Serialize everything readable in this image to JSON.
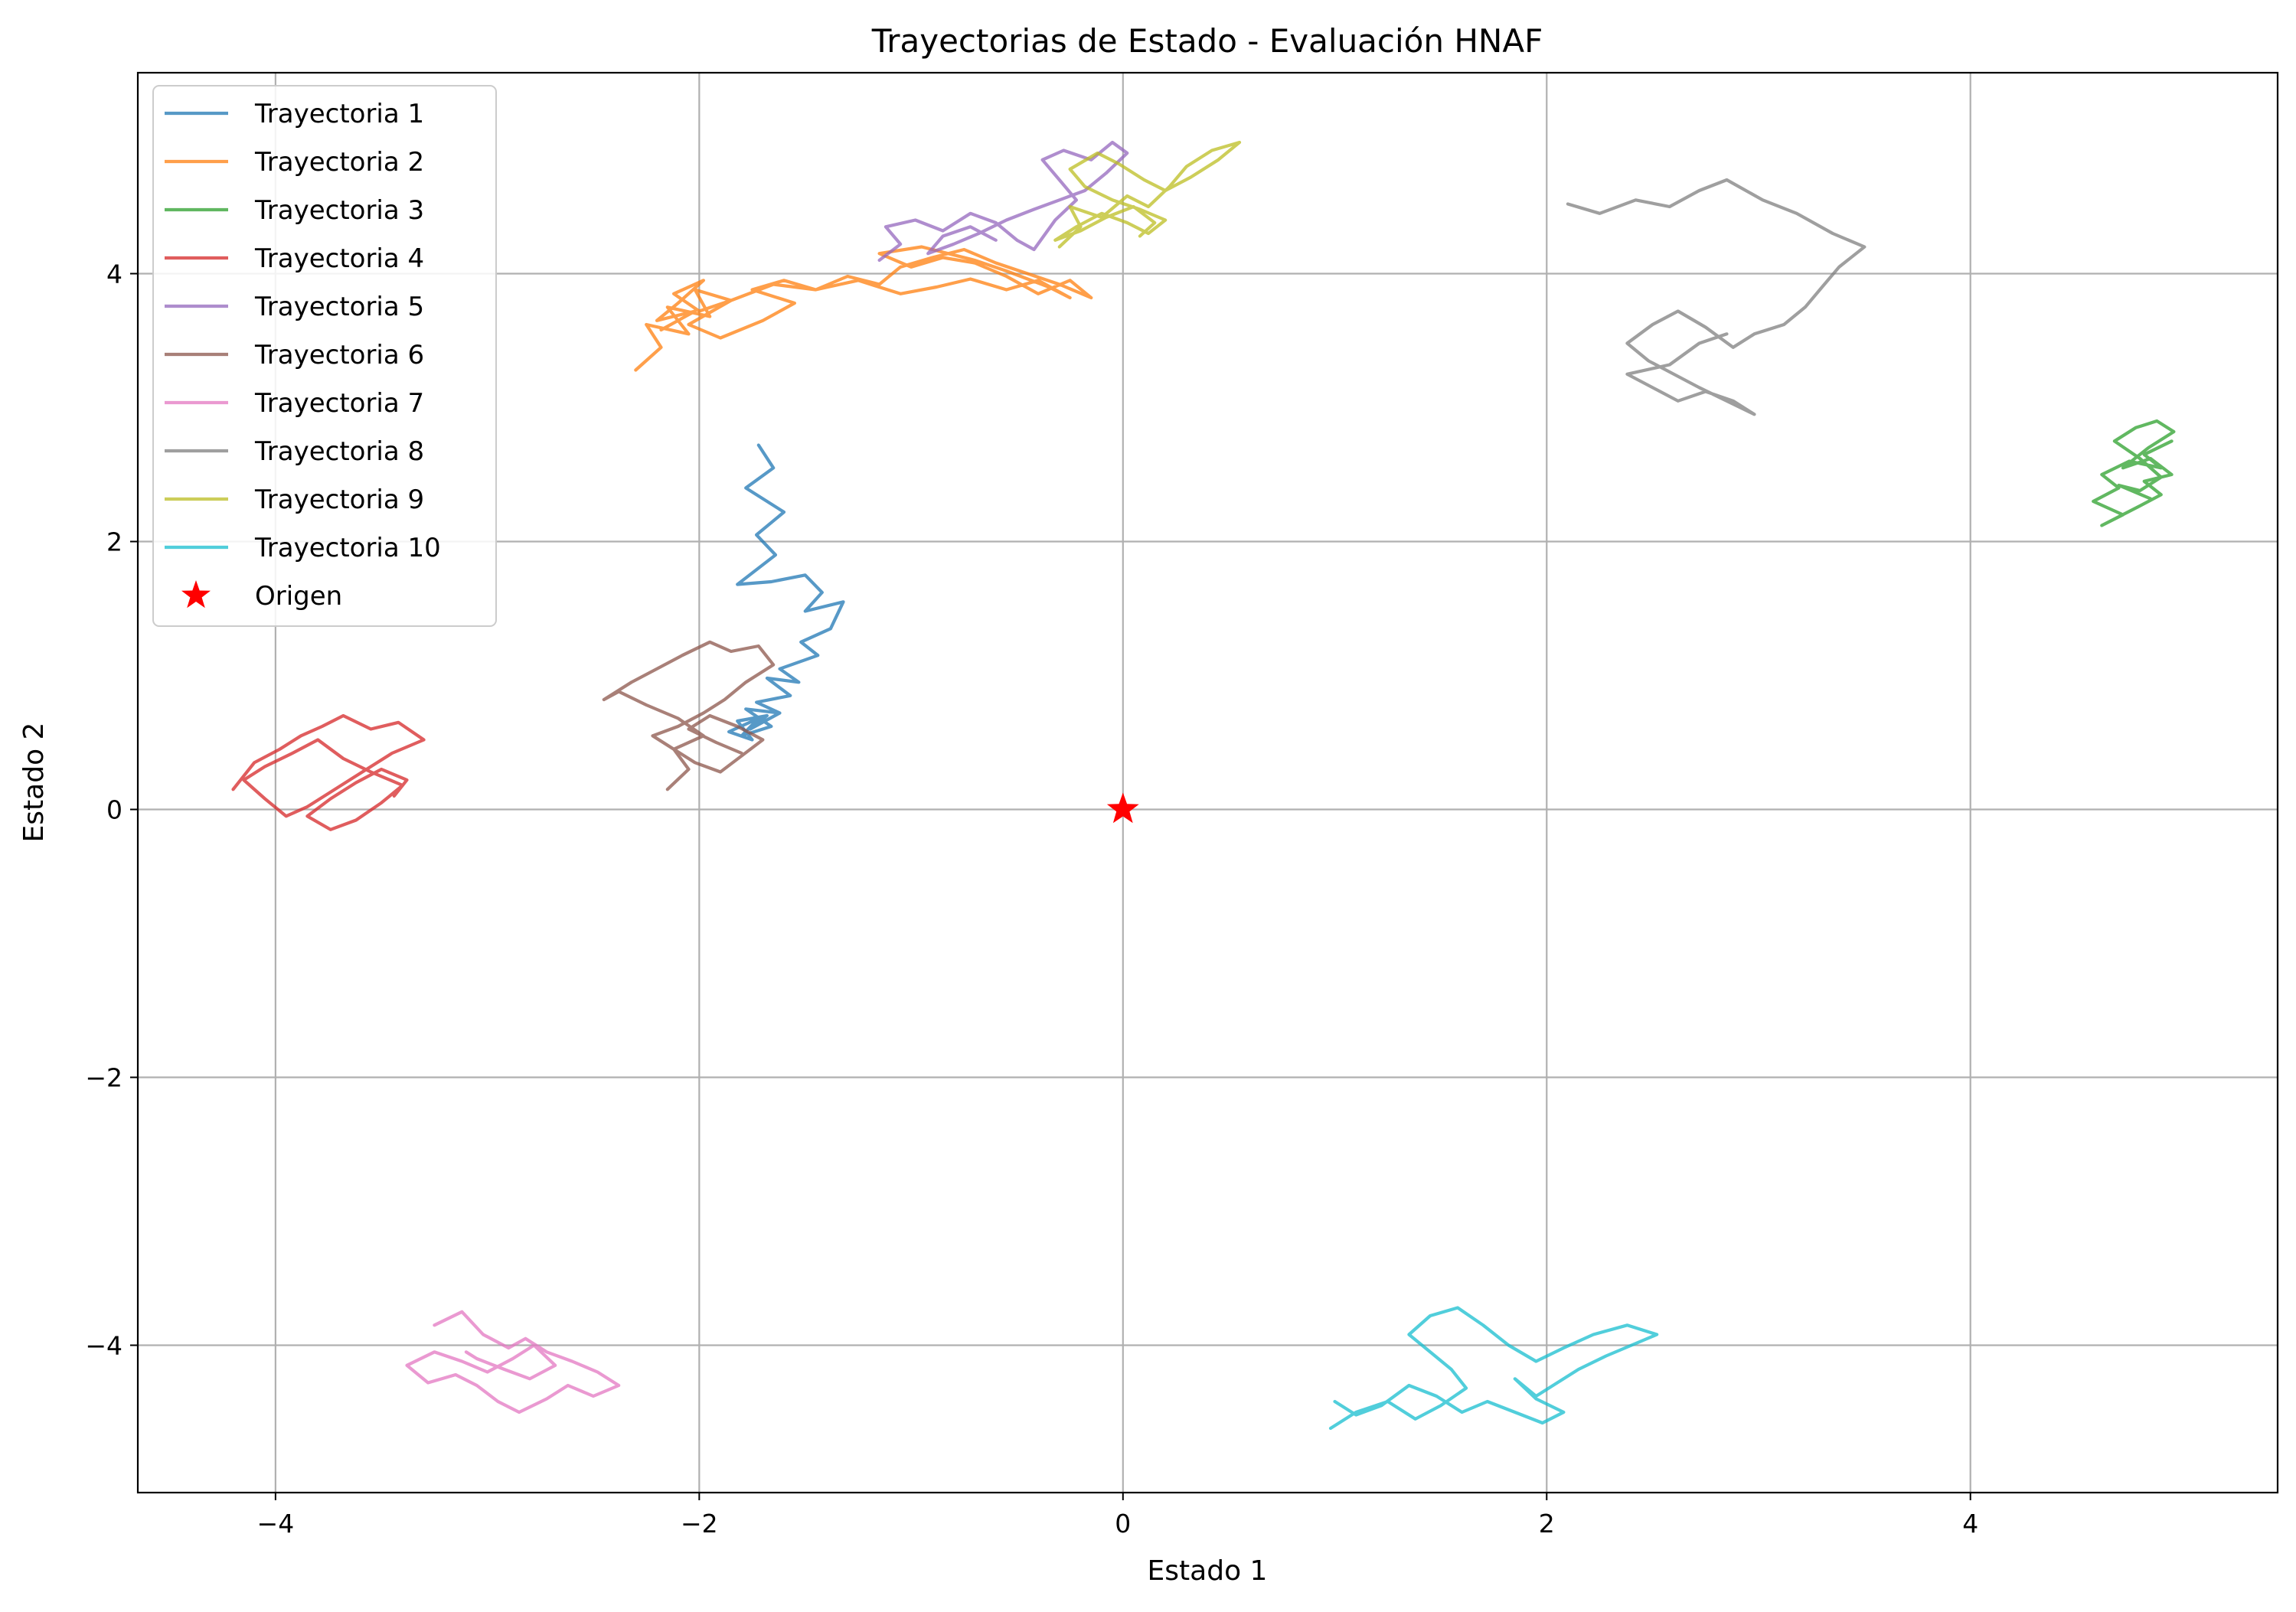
{
  "chart_data": {
    "type": "line",
    "title": "Trayectorias de Estado - Evaluación HNAF",
    "xlabel": "Estado 1",
    "ylabel": "Estado 2",
    "xlim": [
      -4.65,
      5.45
    ],
    "ylim": [
      -5.1,
      5.5
    ],
    "xticks": [
      -4,
      -2,
      0,
      2,
      4
    ],
    "yticks": [
      -4,
      -2,
      0,
      2,
      4
    ],
    "xtick_labels": [
      "−4",
      "−2",
      "0",
      "2",
      "4"
    ],
    "ytick_labels": [
      "−4",
      "−2",
      "0",
      "2",
      "4"
    ],
    "grid": true,
    "legend_position": "upper-left",
    "series": [
      {
        "name": "Trayectoria 1",
        "color": "#1f77b4",
        "x": [
          -1.72,
          -1.65,
          -1.78,
          -1.6,
          -1.73,
          -1.64,
          -1.82,
          -1.66,
          -1.5,
          -1.42,
          -1.5,
          -1.32,
          -1.38,
          -1.52,
          -1.44,
          -1.62,
          -1.53,
          -1.68,
          -1.57,
          -1.73,
          -1.62,
          -1.78,
          -1.66,
          -1.8,
          -1.72,
          -1.86,
          -1.75,
          -1.82,
          -1.68,
          -1.76,
          -1.62
        ],
        "y": [
          2.72,
          2.55,
          2.4,
          2.22,
          2.05,
          1.9,
          1.68,
          1.7,
          1.75,
          1.62,
          1.48,
          1.55,
          1.35,
          1.25,
          1.15,
          1.05,
          0.95,
          0.98,
          0.85,
          0.8,
          0.72,
          0.75,
          0.62,
          0.55,
          0.68,
          0.58,
          0.52,
          0.66,
          0.7,
          0.6,
          0.72
        ]
      },
      {
        "name": "Trayectoria 2",
        "color": "#ff7f0e",
        "x": [
          -2.3,
          -2.18,
          -2.25,
          -2.05,
          -2.15,
          -1.95,
          -2.02,
          -1.85,
          -2.05,
          -1.9,
          -1.7,
          -1.55,
          -1.75,
          -1.6,
          -1.45,
          -1.3,
          -1.15,
          -1.05,
          -0.9,
          -0.75,
          -0.6,
          -0.45,
          -0.3,
          -0.15,
          -0.25,
          -0.4,
          -0.55,
          -0.7,
          -0.85,
          -1.0,
          -1.15,
          -0.95,
          -0.7,
          -0.55,
          -0.35,
          -0.25,
          -0.4,
          -0.55,
          -0.72,
          -0.88,
          -1.05,
          -1.25,
          -1.45,
          -1.65,
          -1.85,
          -2.0,
          -2.12,
          -1.98,
          -2.1,
          -2.2,
          -2.02,
          -2.18
        ],
        "y": [
          3.28,
          3.45,
          3.62,
          3.55,
          3.75,
          3.68,
          3.88,
          3.8,
          3.62,
          3.52,
          3.65,
          3.78,
          3.88,
          3.95,
          3.88,
          3.98,
          3.92,
          4.05,
          4.12,
          4.18,
          4.08,
          4.0,
          3.92,
          3.82,
          3.95,
          3.85,
          3.98,
          4.08,
          4.12,
          4.05,
          4.15,
          4.2,
          4.1,
          4.02,
          3.9,
          3.82,
          3.95,
          3.88,
          3.96,
          3.9,
          3.85,
          3.95,
          3.88,
          3.92,
          3.8,
          3.72,
          3.85,
          3.95,
          3.78,
          3.65,
          3.72,
          3.58
        ]
      },
      {
        "name": "Trayectoria 3",
        "color": "#2ca02c",
        "x": [
          4.95,
          4.82,
          4.9,
          4.75,
          4.62,
          4.7,
          4.58,
          4.72,
          4.62,
          4.78,
          4.9,
          4.82,
          4.95,
          4.85,
          4.72,
          4.84,
          4.96,
          4.88,
          4.78,
          4.68,
          4.8,
          4.9,
          4.8,
          4.7,
          4.85
        ],
        "y": [
          2.75,
          2.65,
          2.55,
          2.6,
          2.5,
          2.4,
          2.3,
          2.2,
          2.12,
          2.25,
          2.35,
          2.45,
          2.5,
          2.62,
          2.55,
          2.7,
          2.82,
          2.9,
          2.85,
          2.75,
          2.62,
          2.48,
          2.38,
          2.42,
          2.32
        ]
      },
      {
        "name": "Trayectoria 4",
        "color": "#d62728",
        "x": [
          -4.2,
          -4.1,
          -3.98,
          -3.88,
          -3.78,
          -3.68,
          -3.55,
          -3.42,
          -3.3,
          -3.45,
          -3.55,
          -3.65,
          -3.75,
          -3.85,
          -3.95,
          -4.05,
          -4.15,
          -4.05,
          -3.92,
          -3.8,
          -3.68,
          -3.55,
          -3.4,
          -3.5,
          -3.62,
          -3.74,
          -3.85,
          -3.74,
          -3.62,
          -3.5,
          -3.38,
          -3.44
        ],
        "y": [
          0.15,
          0.35,
          0.45,
          0.55,
          0.62,
          0.7,
          0.6,
          0.65,
          0.52,
          0.42,
          0.32,
          0.22,
          0.12,
          0.02,
          -0.05,
          0.08,
          0.22,
          0.32,
          0.42,
          0.52,
          0.38,
          0.28,
          0.18,
          0.05,
          -0.08,
          -0.15,
          -0.05,
          0.08,
          0.2,
          0.3,
          0.22,
          0.1
        ]
      },
      {
        "name": "Trayectoria 5",
        "color": "#9467bd",
        "x": [
          -1.15,
          -1.05,
          -1.12,
          -0.98,
          -0.85,
          -0.72,
          -0.6,
          -0.5,
          -0.42,
          -0.32,
          -0.22,
          -0.3,
          -0.38,
          -0.28,
          -0.15,
          -0.05,
          0.02,
          -0.08,
          -0.18,
          -0.3,
          -0.42,
          -0.55,
          -0.68,
          -0.8,
          -0.92,
          -0.85,
          -0.72,
          -0.6
        ],
        "y": [
          4.1,
          4.22,
          4.35,
          4.4,
          4.32,
          4.45,
          4.38,
          4.25,
          4.18,
          4.4,
          4.55,
          4.7,
          4.85,
          4.92,
          4.85,
          4.98,
          4.9,
          4.75,
          4.62,
          4.55,
          4.48,
          4.4,
          4.3,
          4.22,
          4.15,
          4.28,
          4.35,
          4.25
        ]
      },
      {
        "name": "Trayectoria 6",
        "color": "#8c564b",
        "x": [
          -2.15,
          -2.05,
          -2.12,
          -1.98,
          -2.1,
          -2.25,
          -2.38,
          -2.45,
          -2.32,
          -2.2,
          -2.08,
          -1.95,
          -1.85,
          -1.72,
          -1.65,
          -1.78,
          -1.88,
          -1.98,
          -2.1,
          -2.22,
          -2.12,
          -2.02,
          -1.9,
          -1.8,
          -1.7,
          -1.82,
          -1.95,
          -2.05,
          -1.92,
          -1.8
        ],
        "y": [
          0.15,
          0.3,
          0.45,
          0.55,
          0.68,
          0.78,
          0.88,
          0.82,
          0.95,
          1.05,
          1.15,
          1.25,
          1.18,
          1.22,
          1.08,
          0.95,
          0.82,
          0.72,
          0.62,
          0.55,
          0.45,
          0.35,
          0.28,
          0.4,
          0.52,
          0.62,
          0.7,
          0.6,
          0.5,
          0.42
        ]
      },
      {
        "name": "Trayectoria 7",
        "color": "#e377c2",
        "x": [
          -3.25,
          -3.12,
          -3.02,
          -2.9,
          -2.82,
          -2.72,
          -2.6,
          -2.48,
          -2.38,
          -2.5,
          -2.62,
          -2.72,
          -2.85,
          -2.95,
          -3.05,
          -3.15,
          -3.28,
          -3.38,
          -3.25,
          -3.12,
          -3.0,
          -2.88,
          -2.78,
          -2.68,
          -2.8,
          -2.92,
          -3.05,
          -3.1
        ],
        "y": [
          -3.85,
          -3.75,
          -3.92,
          -4.02,
          -3.95,
          -4.05,
          -4.12,
          -4.2,
          -4.3,
          -4.38,
          -4.3,
          -4.4,
          -4.5,
          -4.42,
          -4.3,
          -4.22,
          -4.28,
          -4.15,
          -4.05,
          -4.12,
          -4.2,
          -4.1,
          -4.0,
          -4.15,
          -4.25,
          -4.18,
          -4.1,
          -4.05
        ]
      },
      {
        "name": "Trayectoria 8",
        "color": "#7f7f7f",
        "x": [
          2.1,
          2.25,
          2.42,
          2.58,
          2.72,
          2.85,
          3.02,
          3.18,
          3.35,
          3.5,
          3.38,
          3.3,
          3.22,
          3.12,
          2.98,
          2.88,
          2.75,
          2.62,
          2.5,
          2.38,
          2.48,
          2.6,
          2.72,
          2.85,
          2.98,
          2.88,
          2.75,
          2.62,
          2.5,
          2.38,
          2.58,
          2.72,
          2.85
        ],
        "y": [
          4.52,
          4.45,
          4.55,
          4.5,
          4.62,
          4.7,
          4.55,
          4.45,
          4.3,
          4.2,
          4.05,
          3.9,
          3.75,
          3.62,
          3.55,
          3.45,
          3.6,
          3.72,
          3.62,
          3.48,
          3.35,
          3.25,
          3.15,
          3.05,
          2.95,
          3.05,
          3.12,
          3.05,
          3.15,
          3.25,
          3.32,
          3.48,
          3.55
        ]
      },
      {
        "name": "Trayectoria 9",
        "color": "#bcbd22",
        "x": [
          -0.3,
          -0.2,
          -0.25,
          -0.1,
          0.02,
          0.12,
          0.22,
          0.3,
          0.42,
          0.55,
          0.45,
          0.32,
          0.2,
          0.1,
          -0.02,
          -0.12,
          -0.25,
          -0.18,
          -0.05,
          0.08,
          0.2,
          0.12,
          0.02,
          -0.1,
          -0.22,
          -0.32,
          -0.2,
          -0.08,
          0.05,
          0.15,
          0.08
        ],
        "y": [
          4.2,
          4.35,
          4.5,
          4.42,
          4.58,
          4.5,
          4.65,
          4.8,
          4.92,
          4.98,
          4.85,
          4.72,
          4.62,
          4.7,
          4.82,
          4.9,
          4.78,
          4.65,
          4.55,
          4.48,
          4.4,
          4.3,
          4.38,
          4.45,
          4.35,
          4.25,
          4.32,
          4.42,
          4.5,
          4.38,
          4.28
        ]
      },
      {
        "name": "Trayectoria 10",
        "color": "#17becf",
        "x": [
          0.98,
          1.1,
          1.25,
          1.38,
          1.5,
          1.62,
          1.55,
          1.45,
          1.35,
          1.45,
          1.58,
          1.7,
          1.82,
          1.95,
          2.08,
          2.22,
          2.38,
          2.52,
          2.4,
          2.28,
          2.15,
          2.05,
          1.95,
          1.85,
          1.95,
          2.08,
          1.98,
          1.85,
          1.72,
          1.6,
          1.48,
          1.35,
          1.22,
          1.1,
          1.0
        ],
        "y": [
          -4.62,
          -4.5,
          -4.42,
          -4.55,
          -4.45,
          -4.32,
          -4.18,
          -4.05,
          -3.92,
          -3.78,
          -3.72,
          -3.85,
          -4.0,
          -4.12,
          -4.02,
          -3.92,
          -3.85,
          -3.92,
          -4.0,
          -4.08,
          -4.18,
          -4.28,
          -4.38,
          -4.25,
          -4.4,
          -4.5,
          -4.58,
          -4.5,
          -4.42,
          -4.5,
          -4.38,
          -4.3,
          -4.45,
          -4.52,
          -4.42
        ]
      }
    ],
    "markers": [
      {
        "name": "Origen",
        "x": 0,
        "y": 0,
        "color": "#ff0000",
        "shape": "star"
      }
    ]
  }
}
